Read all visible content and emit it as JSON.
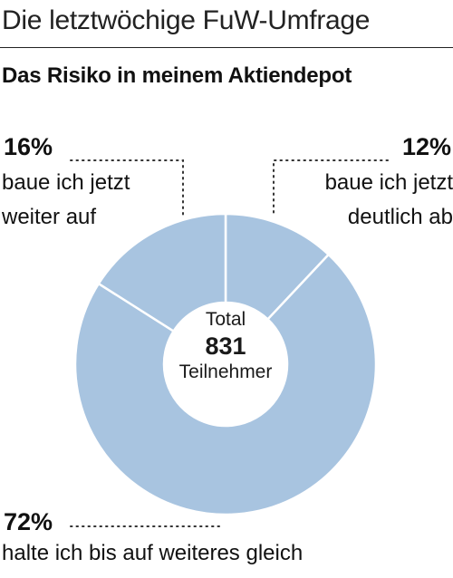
{
  "header": {
    "title": "Die letztwöchige FuW-Umfrage"
  },
  "chart_data": {
    "type": "pie",
    "title": "Das Risiko in meinem Aktiendepot",
    "center": {
      "line1": "Total",
      "value": "831",
      "line3": "Teilnehmer"
    },
    "slices": [
      {
        "label_line1": "baue ich jetzt",
        "label_line2": "deutlich ab",
        "value": 12,
        "pct_label": "12%"
      },
      {
        "label_line1": "halte ich bis auf weiteres gleich",
        "label_line2": "",
        "value": 72,
        "pct_label": "72%"
      },
      {
        "label_line1": "baue ich jetzt",
        "label_line2": "weiter auf",
        "value": 16,
        "pct_label": "16%"
      }
    ],
    "colors": {
      "slice": "#a8c4e0",
      "separator": "#ffffff",
      "leader": "#333333"
    }
  }
}
